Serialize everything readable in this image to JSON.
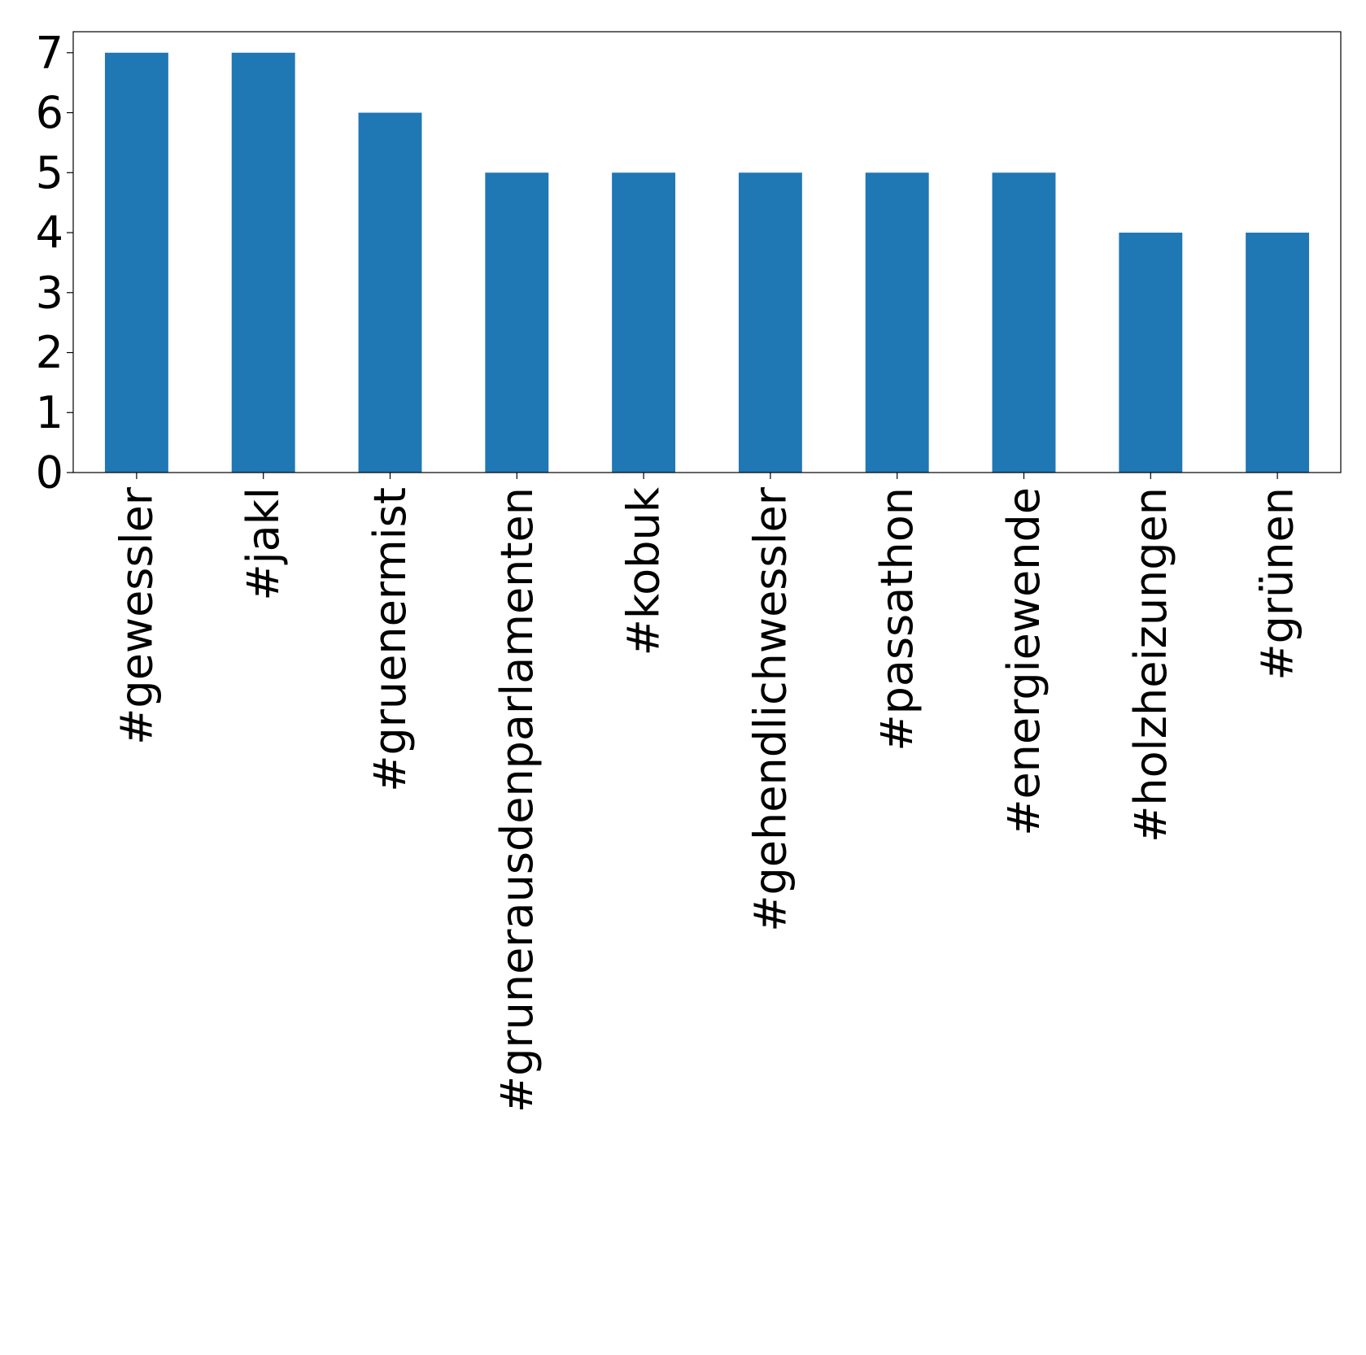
{
  "chart_data": {
    "type": "bar",
    "categories": [
      "#gewessler",
      "#jakl",
      "#gruenermist",
      "#grunerausdenparlamenten",
      "#kobuk",
      "#gehendlichwessler",
      "#passathon",
      "#energiewende",
      "#holzheizungen",
      "#grünen"
    ],
    "values": [
      7,
      7,
      6,
      5,
      5,
      5,
      5,
      5,
      4,
      4
    ],
    "title": "",
    "xlabel": "",
    "ylabel": "",
    "ylim": [
      0,
      7.35
    ],
    "yticks": [
      0,
      1,
      2,
      3,
      4,
      5,
      6,
      7
    ],
    "grid": false,
    "legend": "none",
    "bar_color": "#1f77b4"
  }
}
